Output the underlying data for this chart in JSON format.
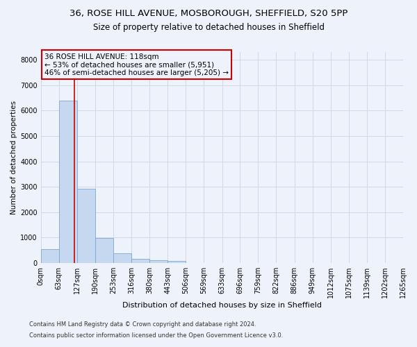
{
  "title1": "36, ROSE HILL AVENUE, MOSBOROUGH, SHEFFIELD, S20 5PP",
  "title2": "Size of property relative to detached houses in Sheffield",
  "xlabel": "Distribution of detached houses by size in Sheffield",
  "ylabel": "Number of detached properties",
  "footer1": "Contains HM Land Registry data © Crown copyright and database right 2024.",
  "footer2": "Contains public sector information licensed under the Open Government Licence v3.0.",
  "property_label": "36 ROSE HILL AVENUE: 118sqm",
  "annotation_line1": "← 53% of detached houses are smaller (5,951)",
  "annotation_line2": "46% of semi-detached houses are larger (5,205) →",
  "bin_edges": [
    0,
    63,
    127,
    190,
    253,
    316,
    380,
    443,
    506,
    569,
    633,
    696,
    759,
    822,
    886,
    949,
    1012,
    1075,
    1139,
    1202,
    1265
  ],
  "bin_heights": [
    560,
    6380,
    2920,
    980,
    390,
    165,
    105,
    85,
    0,
    0,
    0,
    0,
    0,
    0,
    0,
    0,
    0,
    0,
    0,
    0
  ],
  "bar_color": "#c5d8f0",
  "bar_edge_color": "#7aa8d4",
  "vline_color": "#cc0000",
  "vline_x": 118,
  "annotation_box_color": "#cc0000",
  "ylim": [
    0,
    8300
  ],
  "yticks": [
    0,
    1000,
    2000,
    3000,
    4000,
    5000,
    6000,
    7000,
    8000
  ],
  "grid_color": "#d0d8e8",
  "bg_color": "#eef2fa",
  "plot_bg_color": "#eef2fa",
  "title1_fontsize": 9.5,
  "title2_fontsize": 8.5,
  "xlabel_fontsize": 8,
  "ylabel_fontsize": 7.5,
  "tick_fontsize": 7,
  "footer_fontsize": 6,
  "annotation_fontsize": 7.5
}
